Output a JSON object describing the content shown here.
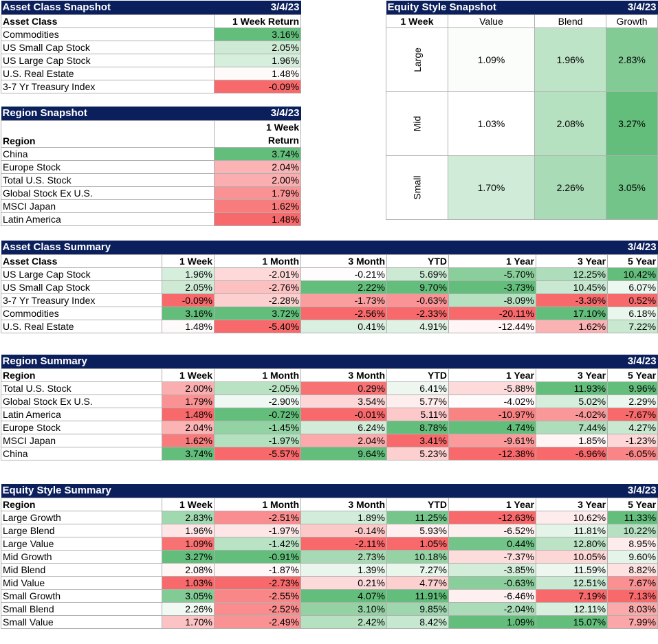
{
  "date": "3/4/23",
  "colors": {
    "header_bg": "#0b1f5c",
    "header_text": "#ffffff",
    "positive": "#63be7b",
    "negative": "#f8696b",
    "neutral": "#ffffff"
  },
  "asset_snapshot": {
    "title": "Asset Class Snapshot",
    "col_label": "Asset Class",
    "col_return": "1 Week Return",
    "rows": [
      {
        "name": "Commodities",
        "value": "3.16%"
      },
      {
        "name": "US Small Cap Stock",
        "value": "2.05%"
      },
      {
        "name": "US Large Cap Stock",
        "value": "1.96%"
      },
      {
        "name": "U.S. Real Estate",
        "value": "1.48%"
      },
      {
        "name": "3-7 Yr Treasury Index",
        "value": "-0.09%"
      }
    ]
  },
  "region_snapshot": {
    "title": "Region Snapshot",
    "col_label": "Region",
    "col_return_1": "1 Week",
    "col_return_2": "Return",
    "rows": [
      {
        "name": "China",
        "value": "3.74%"
      },
      {
        "name": "Europe Stock",
        "value": "2.04%"
      },
      {
        "name": "Total U.S. Stock",
        "value": "2.00%"
      },
      {
        "name": "Global Stock Ex U.S.",
        "value": "1.79%"
      },
      {
        "name": "MSCI Japan",
        "value": "1.62%"
      },
      {
        "name": "Latin America",
        "value": "1.48%"
      }
    ]
  },
  "style_snapshot": {
    "title": "Equity Style Snapshot",
    "corner": "1 Week",
    "cols": [
      "Value",
      "Blend",
      "Growth"
    ],
    "rows": [
      {
        "name": "Large",
        "values": [
          "1.09%",
          "1.96%",
          "2.83%"
        ]
      },
      {
        "name": "Mid",
        "values": [
          "1.03%",
          "2.08%",
          "3.27%"
        ]
      },
      {
        "name": "Small",
        "values": [
          "1.70%",
          "2.26%",
          "3.05%"
        ]
      }
    ]
  },
  "periods": [
    "1 Week",
    "1 Month",
    "3 Month",
    "YTD",
    "1 Year",
    "3 Year",
    "5 Year"
  ],
  "asset_summary": {
    "title": "Asset Class Summary",
    "col_label": "Asset Class",
    "rows": [
      {
        "name": "US Large Cap Stock",
        "values": [
          "1.96%",
          "-2.01%",
          "-0.21%",
          "5.69%",
          "-5.70%",
          "12.25%",
          "10.42%"
        ]
      },
      {
        "name": "US Small Cap Stock",
        "values": [
          "2.05%",
          "-2.76%",
          "2.22%",
          "9.70%",
          "-3.73%",
          "10.45%",
          "6.07%"
        ]
      },
      {
        "name": "3-7 Yr Treasury Index",
        "values": [
          "-0.09%",
          "-2.28%",
          "-1.73%",
          "-0.63%",
          "-8.09%",
          "-3.36%",
          "0.52%"
        ]
      },
      {
        "name": "Commodities",
        "values": [
          "3.16%",
          "3.72%",
          "-2.56%",
          "-2.33%",
          "-20.11%",
          "17.10%",
          "6.18%"
        ]
      },
      {
        "name": "U.S. Real Estate",
        "values": [
          "1.48%",
          "-5.40%",
          "0.41%",
          "4.91%",
          "-12.44%",
          "1.62%",
          "7.22%"
        ]
      }
    ]
  },
  "region_summary": {
    "title": "Region Summary",
    "col_label": "Region",
    "rows": [
      {
        "name": "Total U.S. Stock",
        "values": [
          "2.00%",
          "-2.05%",
          "0.29%",
          "6.41%",
          "-5.88%",
          "11.93%",
          "9.96%"
        ]
      },
      {
        "name": "Global Stock Ex U.S.",
        "values": [
          "1.79%",
          "-2.90%",
          "3.54%",
          "5.77%",
          "-4.02%",
          "5.02%",
          "2.29%"
        ]
      },
      {
        "name": "Latin America",
        "values": [
          "1.48%",
          "-0.72%",
          "-0.01%",
          "5.11%",
          "-10.97%",
          "-4.02%",
          "-7.67%"
        ]
      },
      {
        "name": "Europe Stock",
        "values": [
          "2.04%",
          "-1.45%",
          "6.24%",
          "8.78%",
          "4.74%",
          "7.44%",
          "4.27%"
        ]
      },
      {
        "name": "MSCI Japan",
        "values": [
          "1.62%",
          "-1.97%",
          "2.04%",
          "3.41%",
          "-9.61%",
          "1.85%",
          "-1.23%"
        ]
      },
      {
        "name": "China",
        "values": [
          "3.74%",
          "-5.57%",
          "9.64%",
          "5.23%",
          "-12.38%",
          "-6.96%",
          "-6.05%"
        ]
      }
    ]
  },
  "style_summary": {
    "title": "Equity Style Summary",
    "col_label": "Region",
    "rows": [
      {
        "name": "Large Growth",
        "values": [
          "2.83%",
          "-2.51%",
          "1.89%",
          "11.25%",
          "-12.63%",
          "10.62%",
          "11.33%"
        ]
      },
      {
        "name": "Large Blend",
        "values": [
          "1.96%",
          "-1.97%",
          "-0.14%",
          "5.93%",
          "-6.52%",
          "11.81%",
          "10.22%"
        ]
      },
      {
        "name": "Large Value",
        "values": [
          "1.09%",
          "-1.42%",
          "-2.11%",
          "1.05%",
          "0.44%",
          "12.80%",
          "8.95%"
        ]
      },
      {
        "name": "Mid Growth",
        "values": [
          "3.27%",
          "-0.91%",
          "2.73%",
          "10.18%",
          "-7.37%",
          "10.05%",
          "9.60%"
        ]
      },
      {
        "name": "Mid Blend",
        "values": [
          "2.08%",
          "-1.87%",
          "1.39%",
          "7.27%",
          "-3.85%",
          "11.59%",
          "8.82%"
        ]
      },
      {
        "name": "Mid Value",
        "values": [
          "1.03%",
          "-2.73%",
          "0.21%",
          "4.77%",
          "-0.63%",
          "12.51%",
          "7.67%"
        ]
      },
      {
        "name": "Small Growth",
        "values": [
          "3.05%",
          "-2.55%",
          "4.07%",
          "11.91%",
          "-6.46%",
          "7.19%",
          "7.13%"
        ]
      },
      {
        "name": "Small Blend",
        "values": [
          "2.26%",
          "-2.52%",
          "3.10%",
          "9.85%",
          "-2.04%",
          "12.11%",
          "8.03%"
        ]
      },
      {
        "name": "Small Value",
        "values": [
          "1.70%",
          "-2.49%",
          "2.42%",
          "8.42%",
          "1.09%",
          "15.07%",
          "7.99%"
        ]
      }
    ]
  }
}
